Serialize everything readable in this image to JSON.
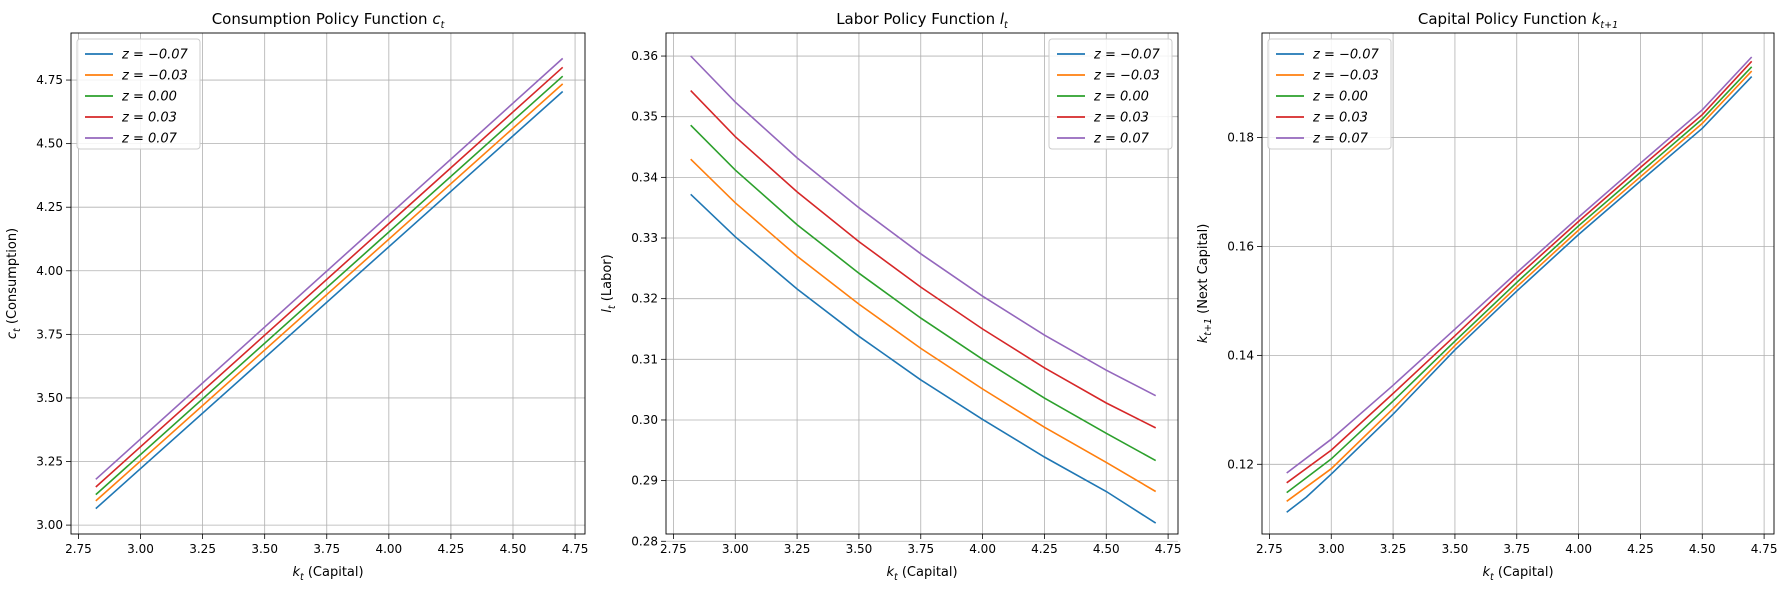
{
  "chart_data": [
    {
      "type": "line",
      "title": "Consumption Policy Function",
      "title_math": "c",
      "title_math_sub": "t",
      "xlabel_math": "k",
      "xlabel_math_sub": "t",
      "xlabel": "(Capital)",
      "ylabel_math": "c",
      "ylabel_math_sub": "t",
      "ylabel": "(Consumption)",
      "xlim": [
        2.72,
        4.79
      ],
      "ylim": [
        2.965,
        4.935
      ],
      "xticks": [
        "2.75",
        "3.00",
        "3.25",
        "3.50",
        "3.75",
        "4.00",
        "4.25",
        "4.50",
        "4.75"
      ],
      "yticks": [
        "3.00",
        "3.25",
        "3.50",
        "3.75",
        "4.00",
        "4.25",
        "4.50",
        "4.75"
      ],
      "grid": true,
      "legend_position": "upper left",
      "x": [
        2.82,
        4.7
      ],
      "series": [
        {
          "name": "z = −0.07",
          "color": "#1f77b4",
          "points": [
            [
              2.82,
              3.065
            ],
            [
              4.7,
              4.705
            ]
          ]
        },
        {
          "name": "z = −0.03",
          "color": "#ff7f0e",
          "points": [
            [
              2.82,
              3.095
            ],
            [
              4.7,
              4.735
            ]
          ]
        },
        {
          "name": "z = 0.00",
          "color": "#2ca02c",
          "points": [
            [
              2.82,
              3.12
            ],
            [
              4.7,
              4.765
            ]
          ]
        },
        {
          "name": "z = 0.03",
          "color": "#d62728",
          "points": [
            [
              2.82,
              3.15
            ],
            [
              4.7,
              4.8
            ]
          ]
        },
        {
          "name": "z = 0.07",
          "color": "#9467bd",
          "points": [
            [
              2.82,
              3.18
            ],
            [
              4.7,
              4.835
            ]
          ]
        }
      ]
    },
    {
      "type": "line",
      "title": "Labor Policy Function",
      "title_math": "l",
      "title_math_sub": "t",
      "xlabel_math": "k",
      "xlabel_math_sub": "t",
      "xlabel": "(Capital)",
      "ylabel_math": "l",
      "ylabel_math_sub": "t",
      "ylabel": "(Labor)",
      "xlim": [
        2.72,
        4.79
      ],
      "ylim": [
        0.2812,
        0.3638
      ],
      "xticks": [
        "2.75",
        "3.00",
        "3.25",
        "3.50",
        "3.75",
        "4.00",
        "4.25",
        "4.50",
        "4.75"
      ],
      "yticks": [
        "0.28",
        "0.29",
        "0.30",
        "0.31",
        "0.32",
        "0.33",
        "0.34",
        "0.35",
        "0.36"
      ],
      "grid": true,
      "legend_position": "upper right",
      "series": [
        {
          "name": "z = −0.07",
          "color": "#1f77b4",
          "points": [
            [
              2.82,
              0.3372
            ],
            [
              3.0,
              0.3302
            ],
            [
              3.25,
              0.3216
            ],
            [
              3.5,
              0.3138
            ],
            [
              3.75,
              0.3066
            ],
            [
              4.0,
              0.3001
            ],
            [
              4.25,
              0.2939
            ],
            [
              4.5,
              0.2882
            ],
            [
              4.7,
              0.283
            ]
          ]
        },
        {
          "name": "z = −0.03",
          "color": "#ff7f0e",
          "points": [
            [
              2.82,
              0.343
            ],
            [
              3.0,
              0.3358
            ],
            [
              3.25,
              0.327
            ],
            [
              3.5,
              0.3191
            ],
            [
              3.75,
              0.3118
            ],
            [
              4.0,
              0.3051
            ],
            [
              4.25,
              0.2988
            ],
            [
              4.5,
              0.293
            ],
            [
              4.7,
              0.2882
            ]
          ]
        },
        {
          "name": "z = 0.00",
          "color": "#2ca02c",
          "points": [
            [
              2.82,
              0.3486
            ],
            [
              3.0,
              0.3412
            ],
            [
              3.25,
              0.3322
            ],
            [
              3.5,
              0.3242
            ],
            [
              3.75,
              0.3168
            ],
            [
              4.0,
              0.31
            ],
            [
              4.25,
              0.3036
            ],
            [
              4.5,
              0.2978
            ],
            [
              4.7,
              0.2933
            ]
          ]
        },
        {
          "name": "z = 0.03",
          "color": "#d62728",
          "points": [
            [
              2.82,
              0.3543
            ],
            [
              3.0,
              0.3467
            ],
            [
              3.25,
              0.3376
            ],
            [
              3.5,
              0.3294
            ],
            [
              3.75,
              0.3219
            ],
            [
              4.0,
              0.315
            ],
            [
              4.25,
              0.3086
            ],
            [
              4.5,
              0.3028
            ],
            [
              4.7,
              0.2987
            ]
          ]
        },
        {
          "name": "z = 0.07",
          "color": "#9467bd",
          "points": [
            [
              2.82,
              0.36
            ],
            [
              3.0,
              0.3524
            ],
            [
              3.25,
              0.3432
            ],
            [
              3.5,
              0.335
            ],
            [
              3.75,
              0.3274
            ],
            [
              4.0,
              0.3204
            ],
            [
              4.25,
              0.314
            ],
            [
              4.5,
              0.3082
            ],
            [
              4.7,
              0.304
            ]
          ]
        }
      ]
    },
    {
      "type": "line",
      "title": "Capital Policy Function",
      "title_math": "k",
      "title_math_sub": "t+1",
      "xlabel_math": "k",
      "xlabel_math_sub": "t",
      "xlabel": "(Capital)",
      "ylabel_math": "k",
      "ylabel_math_sub": "t+1",
      "ylabel": "(Next Capital)",
      "xlim": [
        2.72,
        4.79
      ],
      "ylim": [
        0.1072,
        0.1992
      ],
      "xticks": [
        "2.75",
        "3.00",
        "3.25",
        "3.50",
        "3.75",
        "4.00",
        "4.25",
        "4.50",
        "4.75"
      ],
      "yticks": [
        "0.12",
        "0.14",
        "0.16",
        "0.18"
      ],
      "grid": true,
      "legend_position": "upper left",
      "series": [
        {
          "name": "z = −0.07",
          "color": "#1f77b4",
          "points": [
            [
              2.82,
              0.1112
            ],
            [
              2.9,
              0.114
            ],
            [
              3.0,
              0.1182
            ],
            [
              3.25,
              0.1292
            ],
            [
              3.5,
              0.141
            ],
            [
              3.75,
              0.1518
            ],
            [
              4.0,
              0.1622
            ],
            [
              4.25,
              0.172
            ],
            [
              4.5,
              0.1817
            ],
            [
              4.7,
              0.1912
            ]
          ]
        },
        {
          "name": "z = −0.03",
          "color": "#ff7f0e",
          "points": [
            [
              2.82,
              0.1132
            ],
            [
              3.0,
              0.1192
            ],
            [
              3.25,
              0.1302
            ],
            [
              3.5,
              0.1418
            ],
            [
              3.75,
              0.1526
            ],
            [
              4.0,
              0.163
            ],
            [
              4.25,
              0.1728
            ],
            [
              4.5,
              0.1826
            ],
            [
              4.7,
              0.1922
            ]
          ]
        },
        {
          "name": "z = 0.00",
          "color": "#2ca02c",
          "points": [
            [
              2.82,
              0.1148
            ],
            [
              3.0,
              0.121
            ],
            [
              3.25,
              0.1316
            ],
            [
              3.5,
              0.1426
            ],
            [
              3.75,
              0.1534
            ],
            [
              4.0,
              0.1638
            ],
            [
              4.25,
              0.1736
            ],
            [
              4.5,
              0.1834
            ],
            [
              4.7,
              0.193
            ]
          ]
        },
        {
          "name": "z = 0.03",
          "color": "#d62728",
          "points": [
            [
              2.82,
              0.1166
            ],
            [
              3.0,
              0.1226
            ],
            [
              3.25,
              0.133
            ],
            [
              3.5,
              0.1436
            ],
            [
              3.75,
              0.1544
            ],
            [
              4.0,
              0.1646
            ],
            [
              4.25,
              0.1745
            ],
            [
              4.5,
              0.1842
            ],
            [
              4.7,
              0.194
            ]
          ]
        },
        {
          "name": "z = 0.07",
          "color": "#9467bd",
          "points": [
            [
              2.82,
              0.1184
            ],
            [
              3.0,
              0.1246
            ],
            [
              3.25,
              0.1345
            ],
            [
              3.5,
              0.1448
            ],
            [
              3.75,
              0.1552
            ],
            [
              4.0,
              0.1654
            ],
            [
              4.25,
              0.1753
            ],
            [
              4.5,
              0.1851
            ],
            [
              4.7,
              0.1948
            ]
          ]
        }
      ]
    }
  ]
}
